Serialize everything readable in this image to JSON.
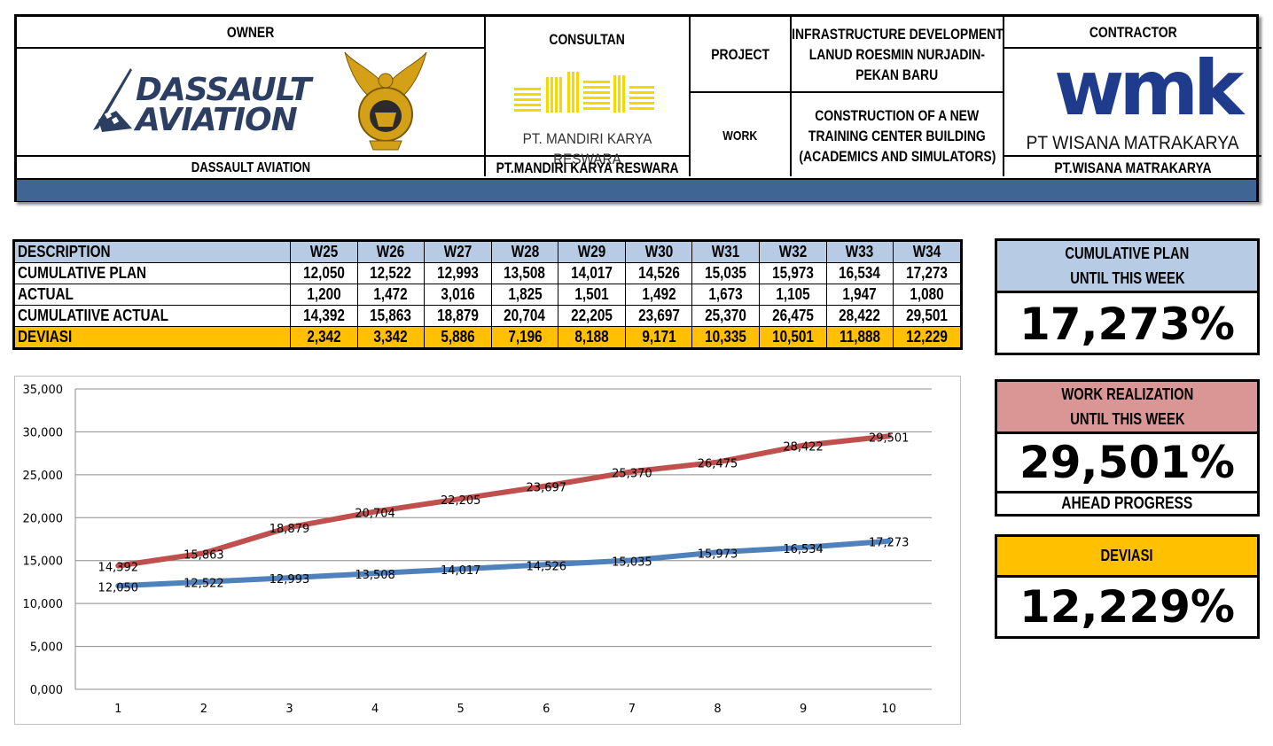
{
  "header": {
    "owner_label": "OWNER",
    "owner_logo": {
      "line1": "DASSAULT",
      "line2": "AVIATION",
      "icon": "dassault-logo-icon"
    },
    "owner_emblem_icon": "air-force-eagle-emblem-icon",
    "owner_name": "DASSAULT AVIATION",
    "consultant_label": "CONSULTAN",
    "consultant_logo_text": "PT. MANDIRI KARYA RESWARA",
    "consultant_name": "PT.MANDIRI KARYA RESWARA",
    "project_label": "PROJECT",
    "project_value": [
      "INFRASTRUCTURE DEVELOPMENT",
      "LANUD ROESMIN NURJADIN-",
      "PEKAN BARU"
    ],
    "work_label": "WORK",
    "work_value": [
      "CONSTRUCTION OF A NEW",
      "TRAINING CENTER BUILDING",
      "(ACADEMICS AND SIMULATORS)"
    ],
    "contractor_label": "CONTRACTOR",
    "contractor_logo": {
      "mark": "wmk",
      "text": "PT WISANA MATRAKARYA"
    },
    "contractor_name": "PT.WISANA MATRAKARYA",
    "accent_color": "#3f6595"
  },
  "table": {
    "columns": [
      "DESCRIPTION",
      "W25",
      "W26",
      "W27",
      "W28",
      "W29",
      "W30",
      "W31",
      "W32",
      "W33",
      "W34"
    ],
    "rows": [
      {
        "label": "CUMULATIVE PLAN",
        "values": [
          "12,050",
          "12,522",
          "12,993",
          "13,508",
          "14,017",
          "14,526",
          "15,035",
          "15,973",
          "16,534",
          "17,273"
        ]
      },
      {
        "label": "ACTUAL",
        "values": [
          "1,200",
          "1,472",
          "3,016",
          "1,825",
          "1,501",
          "1,492",
          "1,673",
          "1,105",
          "1,947",
          "1,080"
        ]
      },
      {
        "label": "CUMULATIIVE ACTUAL",
        "values": [
          "14,392",
          "15,863",
          "18,879",
          "20,704",
          "22,205",
          "23,697",
          "25,370",
          "26,475",
          "28,422",
          "29,501"
        ]
      },
      {
        "label": "DEVIASI",
        "values": [
          "2,342",
          "3,342",
          "5,886",
          "7,196",
          "8,188",
          "9,171",
          "10,335",
          "10,501",
          "11,888",
          "12,229"
        ]
      }
    ],
    "header_color": "#b7cce4",
    "deviasi_color": "#ffc000"
  },
  "panels": {
    "plan": {
      "title_line1": "CUMULATIVE PLAN",
      "title_line2": "UNTIL THIS WEEK",
      "value": "17,273%",
      "color": "#b7cce4"
    },
    "realization": {
      "title_line1": "WORK REALIZATION",
      "title_line2": "UNTIL THIS WEEK",
      "value": "29,501%",
      "footer": "AHEAD PROGRESS",
      "color": "#da9694"
    },
    "deviasi": {
      "title": "DEVIASI",
      "value": "12,229%",
      "color": "#ffc000"
    }
  },
  "chart_data": {
    "type": "line",
    "x": [
      1,
      2,
      3,
      4,
      5,
      6,
      7,
      8,
      9,
      10
    ],
    "ylim": [
      0,
      35000
    ],
    "yticks": [
      "0,000",
      "5,000",
      "10,000",
      "15,000",
      "20,000",
      "25,000",
      "30,000",
      "35,000"
    ],
    "grid": true,
    "series": [
      {
        "color": "#c0504d",
        "values": [
          14392,
          15863,
          18879,
          20704,
          22205,
          23697,
          25370,
          26475,
          28422,
          29501
        ],
        "labels": [
          "14,392",
          "15,863",
          "18,879",
          "20,704",
          "22,205",
          "23,697",
          "25,370",
          "26,475",
          "28,422",
          "29,501"
        ]
      },
      {
        "color": "#4f81bd",
        "values": [
          12050,
          12522,
          12993,
          13508,
          14017,
          14526,
          15035,
          15973,
          16534,
          17273
        ],
        "labels": [
          "12,050",
          "12,522",
          "12,993",
          "13,508",
          "14,017",
          "14,526",
          "15,035",
          "15,973",
          "16,534",
          "17,273"
        ]
      }
    ]
  }
}
